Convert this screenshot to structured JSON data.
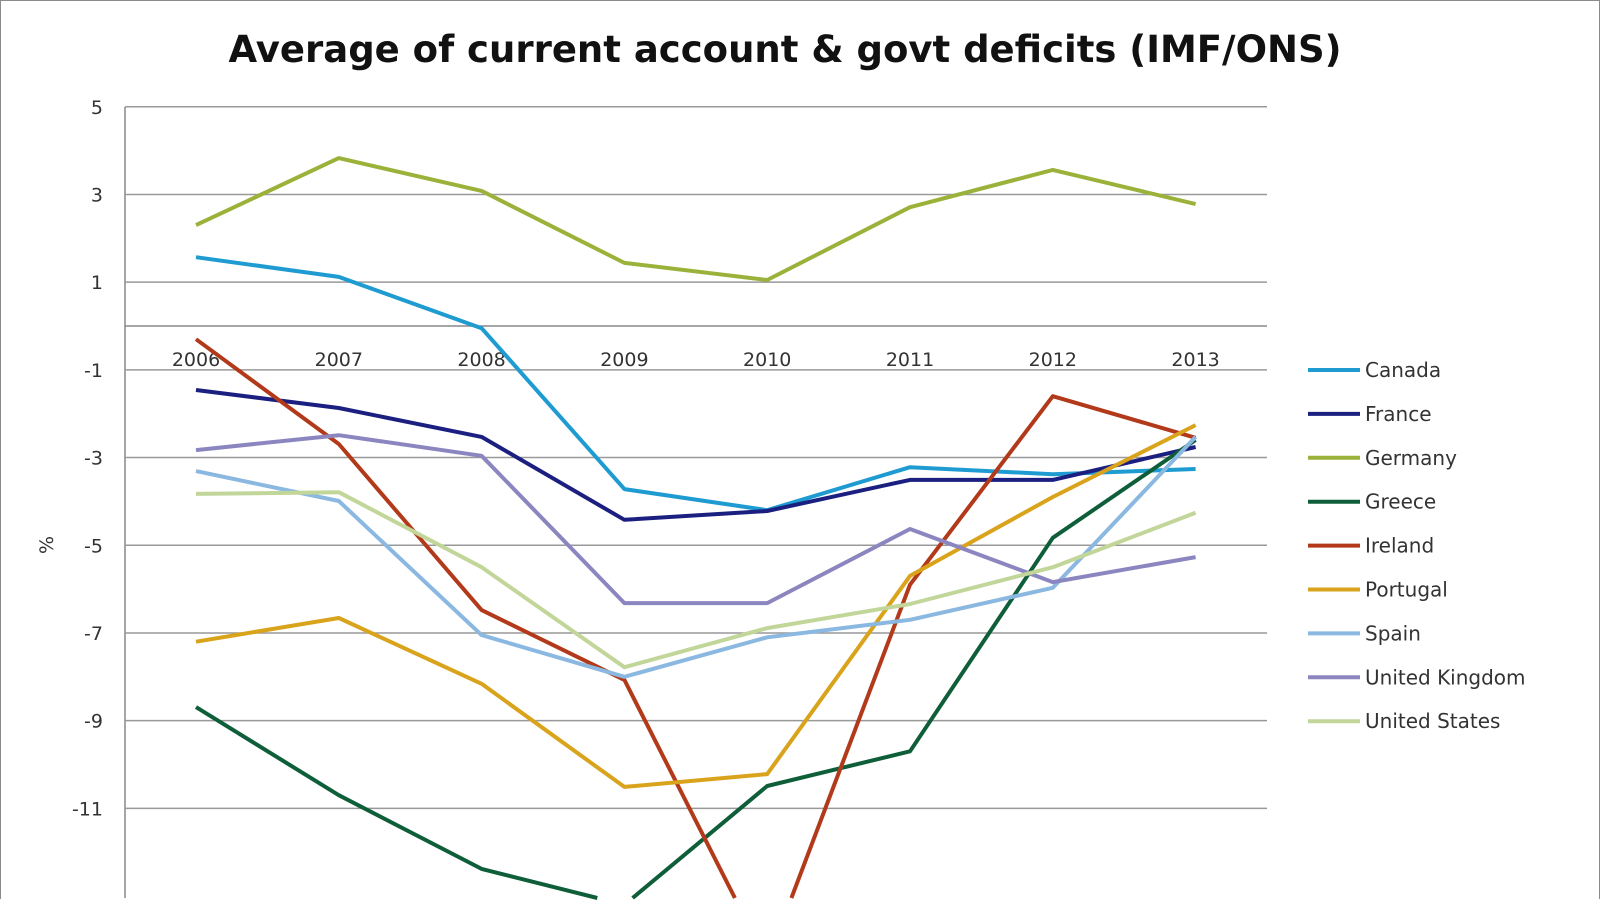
{
  "chart_data": {
    "type": "line",
    "title": "Average of current account & govt deficits (IMF/ONS)",
    "xlabel": "",
    "ylabel": "%",
    "categories": [
      "2006",
      "2007",
      "2008",
      "2009",
      "2010",
      "2011",
      "2012",
      "2013"
    ],
    "yticks": [
      "5",
      "3",
      "1",
      "-1",
      "-3",
      "-5",
      "-7",
      "-9",
      "-11"
    ],
    "ylim": [
      -13.4,
      5
    ],
    "grid": true,
    "legend_position": "right",
    "series": [
      {
        "name": "Canada",
        "color": "#1e9bd0",
        "values": [
          1.57,
          1.12,
          -0.05,
          -3.72,
          -4.2,
          -3.22,
          -3.38,
          -3.26
        ]
      },
      {
        "name": "France",
        "color": "#1a1f80",
        "values": [
          -1.46,
          -1.87,
          -2.53,
          -4.42,
          -4.22,
          -3.51,
          -3.51,
          -2.76
        ]
      },
      {
        "name": "Germany",
        "color": "#9bb23a",
        "values": [
          2.3,
          3.83,
          3.08,
          1.44,
          1.05,
          2.71,
          3.56,
          2.78
        ]
      },
      {
        "name": "Greece",
        "color": "#0f5e3a",
        "values": [
          -8.69,
          -10.7,
          -12.38,
          -13.2,
          -10.49,
          -9.7,
          -4.83,
          -2.6
        ]
      },
      {
        "name": "Ireland",
        "color": "#b23a1a",
        "values": [
          -0.3,
          -2.69,
          -6.48,
          -8.07,
          -14.5,
          -5.9,
          -1.6,
          -2.55
        ]
      },
      {
        "name": "Portugal",
        "color": "#d9a31c",
        "values": [
          -7.2,
          -6.66,
          -8.16,
          -10.51,
          -10.22,
          -5.7,
          -3.9,
          -2.26
        ]
      },
      {
        "name": "Spain",
        "color": "#8ab8e0",
        "values": [
          -3.31,
          -3.99,
          -7.05,
          -8.0,
          -7.1,
          -6.7,
          -5.97,
          -2.53
        ]
      },
      {
        "name": "United Kingdom",
        "color": "#8c86c0",
        "values": [
          -2.83,
          -2.49,
          -2.96,
          -6.32,
          -6.32,
          -4.63,
          -5.84,
          -5.27
        ]
      },
      {
        "name": "United States",
        "color": "#c2d69a",
        "values": [
          -3.83,
          -3.79,
          -5.5,
          -7.78,
          -6.89,
          -6.34,
          -5.5,
          -4.26
        ]
      }
    ]
  }
}
